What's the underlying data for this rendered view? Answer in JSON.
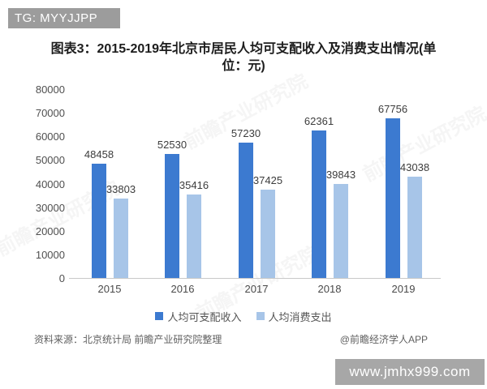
{
  "badge": {
    "text": "TG: MYYJJPP"
  },
  "title": {
    "line1": "图表3：2015-2019年北京市居民人均可支配收入及消费支出情况(单",
    "line2": "位：元)"
  },
  "chart_data": {
    "type": "bar",
    "title": "图表3：2015-2019年北京市居民人均可支配收入及消费支出情况(单位：元)",
    "categories": [
      "2015",
      "2016",
      "2017",
      "2018",
      "2019"
    ],
    "series": [
      {
        "name": "人均可支配收入",
        "color": "#3c7ad0",
        "values": [
          48458,
          52530,
          57230,
          62361,
          67756
        ]
      },
      {
        "name": "人均消费支出",
        "color": "#a7c5e8",
        "values": [
          33803,
          35416,
          37425,
          39843,
          43038
        ]
      }
    ],
    "xlabel": "",
    "ylabel": "",
    "ylim": [
      0,
      80000
    ],
    "ytick_step": 10000,
    "grid": false,
    "legend_position": "bottom"
  },
  "source": {
    "left": "资料来源：北京统计局 前瞻产业研究院整理",
    "right": "@前瞻经济学人APP"
  },
  "site_bar": {
    "text": "www.jmhx999.com"
  },
  "watermark": {
    "text": "前瞻产业研究院"
  },
  "colors": {
    "income_bar": "#3c7ad0",
    "expense_bar": "#a7c5e8",
    "axis_line": "#c9c9c9",
    "badge_bg": "#9c9c9c",
    "site_bar_bg": "#a7a7a7"
  }
}
